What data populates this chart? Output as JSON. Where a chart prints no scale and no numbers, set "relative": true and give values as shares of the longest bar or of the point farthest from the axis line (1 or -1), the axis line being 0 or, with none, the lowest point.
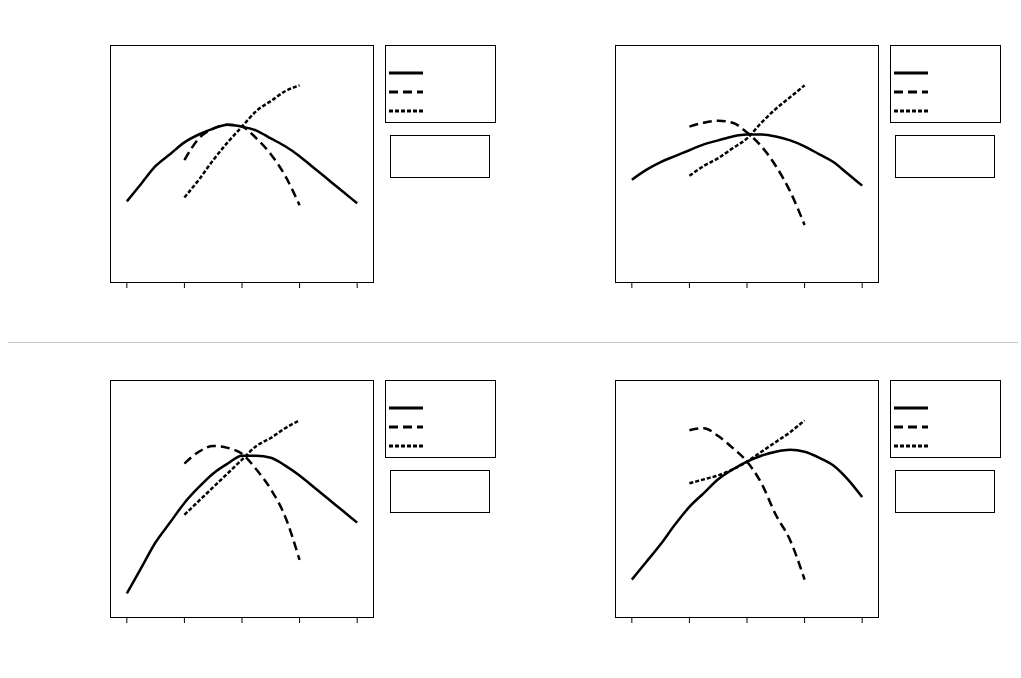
{
  "chart_data": [
    {
      "type": "line",
      "relative": true,
      "categories": [
        null,
        null,
        null,
        null,
        null,
        null,
        null,
        null,
        null,
        null,
        null,
        null,
        null,
        null,
        null,
        null,
        null
      ],
      "series": [
        {
          "color": "#000000",
          "line_style": "solid",
          "values": [
            0.41,
            0.5,
            0.59,
            0.65,
            0.71,
            0.75,
            0.78,
            0.8,
            0.79,
            0.77,
            0.73,
            0.69,
            0.64,
            0.58,
            0.52,
            0.46,
            0.4
          ]
        },
        {
          "color": "#000000",
          "line_style": "dashed",
          "values": [
            null,
            null,
            null,
            null,
            0.62,
            0.73,
            0.78,
            0.8,
            0.79,
            0.73,
            0.65,
            0.54,
            0.39,
            null,
            null,
            null,
            null
          ]
        },
        {
          "color": "#000000",
          "line_style": "dotted",
          "values": [
            null,
            null,
            null,
            null,
            0.43,
            0.52,
            0.62,
            0.71,
            0.79,
            0.87,
            0.92,
            0.97,
            1,
            null,
            null,
            null,
            null
          ]
        }
      ]
    },
    {
      "type": "line",
      "relative": true,
      "categories": [
        null,
        null,
        null,
        null,
        null,
        null,
        null,
        null,
        null,
        null,
        null,
        null,
        null,
        null,
        null,
        null,
        null
      ],
      "series": [
        {
          "color": "#000000",
          "line_style": "solid",
          "values": [
            0.52,
            0.57,
            0.61,
            0.64,
            0.67,
            0.7,
            0.72,
            0.74,
            0.75,
            0.75,
            0.74,
            0.72,
            0.69,
            0.65,
            0.61,
            0.55,
            0.49
          ]
        },
        {
          "color": "#000000",
          "line_style": "dashed",
          "values": [
            null,
            null,
            null,
            null,
            0.79,
            0.81,
            0.82,
            0.81,
            0.76,
            0.69,
            0.59,
            0.46,
            0.29,
            null,
            null,
            null,
            null
          ]
        },
        {
          "color": "#000000",
          "line_style": "dotted",
          "values": [
            null,
            null,
            null,
            null,
            0.54,
            0.59,
            0.63,
            0.68,
            0.73,
            0.81,
            0.88,
            0.94,
            1,
            null,
            null,
            null,
            null
          ]
        }
      ]
    },
    {
      "type": "line",
      "relative": true,
      "categories": [
        null,
        null,
        null,
        null,
        null,
        null,
        null,
        null,
        null,
        null,
        null,
        null,
        null,
        null,
        null,
        null,
        null
      ],
      "series": [
        {
          "color": "#000000",
          "line_style": "solid",
          "values": [
            0.12,
            0.25,
            0.38,
            0.48,
            0.58,
            0.66,
            0.73,
            0.78,
            0.82,
            0.82,
            0.81,
            0.77,
            0.72,
            0.66,
            0.6,
            0.54,
            0.48
          ]
        },
        {
          "color": "#000000",
          "line_style": "dashed",
          "values": [
            null,
            null,
            null,
            null,
            0.78,
            0.84,
            0.87,
            0.86,
            0.83,
            0.75,
            0.65,
            0.51,
            0.29,
            null,
            null,
            null,
            null
          ]
        },
        {
          "color": "#000000",
          "line_style": "dotted",
          "values": [
            null,
            null,
            null,
            null,
            0.52,
            0.59,
            0.66,
            0.73,
            0.8,
            0.87,
            0.91,
            0.96,
            1,
            null,
            null,
            null,
            null
          ]
        }
      ]
    },
    {
      "type": "line",
      "relative": true,
      "categories": [
        null,
        null,
        null,
        null,
        null,
        null,
        null,
        null,
        null,
        null,
        null,
        null,
        null,
        null,
        null,
        null,
        null
      ],
      "series": [
        {
          "color": "#000000",
          "line_style": "solid",
          "values": [
            0.19,
            0.28,
            0.37,
            0.47,
            0.56,
            0.63,
            0.7,
            0.75,
            0.79,
            0.82,
            0.84,
            0.85,
            0.84,
            0.81,
            0.77,
            0.7,
            0.61
          ]
        },
        {
          "color": "#000000",
          "line_style": "dashed",
          "values": [
            null,
            null,
            null,
            null,
            0.95,
            0.96,
            0.92,
            0.86,
            0.79,
            0.68,
            0.52,
            0.39,
            0.19,
            null,
            null,
            null,
            null
          ]
        },
        {
          "color": "#000000",
          "line_style": "dotted",
          "values": [
            null,
            null,
            null,
            null,
            0.68,
            0.7,
            0.72,
            0.75,
            0.79,
            0.84,
            0.89,
            0.94,
            1,
            null,
            null,
            null,
            null
          ]
        }
      ]
    }
  ]
}
